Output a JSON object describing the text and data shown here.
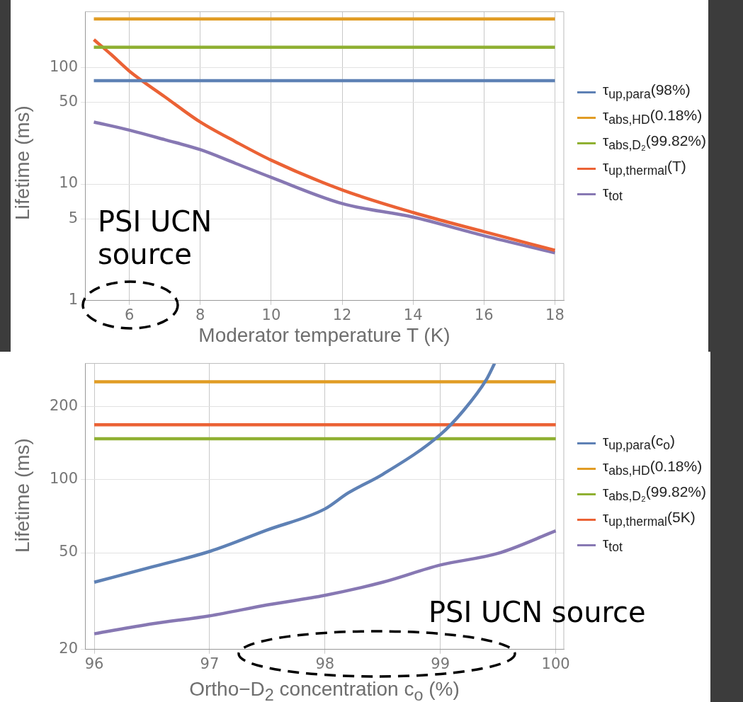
{
  "chart_data": [
    {
      "type": "line",
      "xlabel": "Moderator temperature T (K)",
      "ylabel": "Lifetime (ms)",
      "xlim": [
        4.75,
        18.25
      ],
      "xticks": [
        6,
        8,
        10,
        12,
        14,
        16,
        18
      ],
      "ylim": [
        1,
        300
      ],
      "yticks": [
        1,
        5,
        10,
        50,
        100
      ],
      "log": "y",
      "grid": true,
      "legend": "right",
      "marker": "none",
      "line_style": "solid",
      "series": [
        {
          "name": "τ$_{up,para}$(98%)",
          "color": "#5e81b5",
          "x": [
            5,
            18
          ],
          "values": [
            77,
            77
          ]
        },
        {
          "name": "τ$_{abs,HD}$(0.18%)",
          "color": "#e19c24",
          "x": [
            5,
            18
          ],
          "values": [
            260,
            260
          ]
        },
        {
          "name": "τ$_{abs,D₂}$(99.82%)",
          "color": "#8fb032",
          "x": [
            5,
            18
          ],
          "values": [
            149,
            149
          ]
        },
        {
          "name": "τ$_{up,thermal}$(T)",
          "color": "#eb6235",
          "x": [
            5,
            5.5,
            6,
            7,
            8,
            9,
            10,
            12,
            14,
            16,
            18
          ],
          "values": [
            173,
            128,
            93,
            56,
            34,
            23,
            16,
            8.9,
            5.7,
            3.9,
            2.7
          ]
        },
        {
          "name": "τ$_{tot}$",
          "color": "#8778b3",
          "x": [
            5,
            6,
            7,
            8,
            9,
            10,
            12,
            14,
            16,
            18
          ],
          "values": [
            34,
            29,
            24,
            19.7,
            15,
            11.4,
            6.8,
            5.2,
            3.6,
            2.57
          ]
        }
      ],
      "annotations": [
        "PSI UCN source"
      ]
    },
    {
      "type": "line",
      "xlabel": "Ortho−D$_{2}$ concentration c$_{o}$ (%)",
      "ylabel": "Lifetime (ms)",
      "xlim": [
        95.92,
        100.07
      ],
      "xticks": [
        96,
        97,
        98,
        99,
        100
      ],
      "ylim": [
        20,
        300
      ],
      "yticks": [
        20,
        50,
        100,
        200
      ],
      "log": "y",
      "grid": true,
      "legend": "right",
      "marker": "none",
      "line_style": "solid",
      "series": [
        {
          "name": "τ$_{up,para}$(c$_{o}$)",
          "color": "#5e81b5",
          "x": [
            96,
            96.5,
            97,
            97.5,
            98,
            98.2,
            98.5,
            99,
            99.2,
            99.4,
            99.47
          ],
          "values": [
            37.8,
            43.7,
            50.6,
            62,
            75.7,
            88,
            105,
            153,
            192,
            258,
            300
          ]
        },
        {
          "name": "τ$_{abs,HD}$(0.18%)",
          "color": "#e19c24",
          "x": [
            96,
            100
          ],
          "values": [
            252,
            252
          ]
        },
        {
          "name": "τ$_{abs,D₂}$(99.82%)",
          "color": "#8fb032",
          "x": [
            96,
            100
          ],
          "values": [
            147,
            147
          ]
        },
        {
          "name": "τ$_{up,thermal}$(5K)",
          "color": "#eb6235",
          "x": [
            96,
            100
          ],
          "values": [
            168,
            168
          ]
        },
        {
          "name": "τ$_{tot}$",
          "color": "#8778b3",
          "x": [
            96,
            96.5,
            97,
            97.5,
            98,
            98.5,
            99,
            99.5,
            100
          ],
          "values": [
            23.2,
            25.5,
            27.5,
            30.5,
            33.4,
            37.8,
            44.5,
            49.7,
            61.5
          ]
        }
      ],
      "annotations": [
        "PSI UCN source"
      ]
    }
  ]
}
